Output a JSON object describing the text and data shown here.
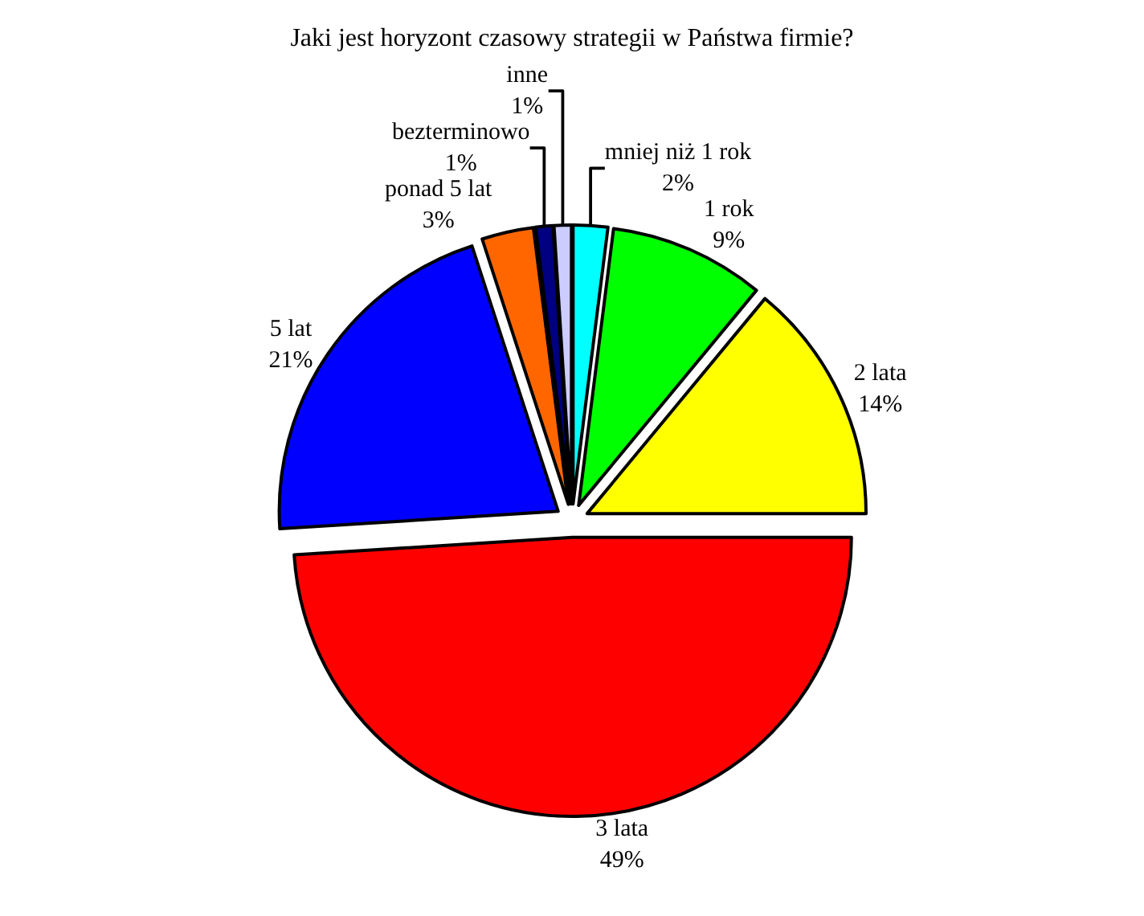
{
  "chart_data": {
    "type": "pie",
    "title": "Jaki jest horyzont czasowy strategii w Państwa firmie?",
    "categories": [
      "mniej niż 1 rok",
      "1 rok",
      "2 lata",
      "3 lata",
      "5 lat",
      "ponad 5 lat",
      "bezterminowo",
      "inne"
    ],
    "values": [
      2,
      9,
      14,
      49,
      21,
      3,
      1,
      1
    ],
    "colors": [
      "#00ffff",
      "#00ff00",
      "#ffff00",
      "#ff0000",
      "#0000ff",
      "#ff6600",
      "#000080",
      "#ccccff"
    ],
    "value_labels": [
      "2%",
      "9%",
      "14%",
      "49%",
      "21%",
      "3%",
      "1%",
      "1%"
    ],
    "legend": false
  }
}
